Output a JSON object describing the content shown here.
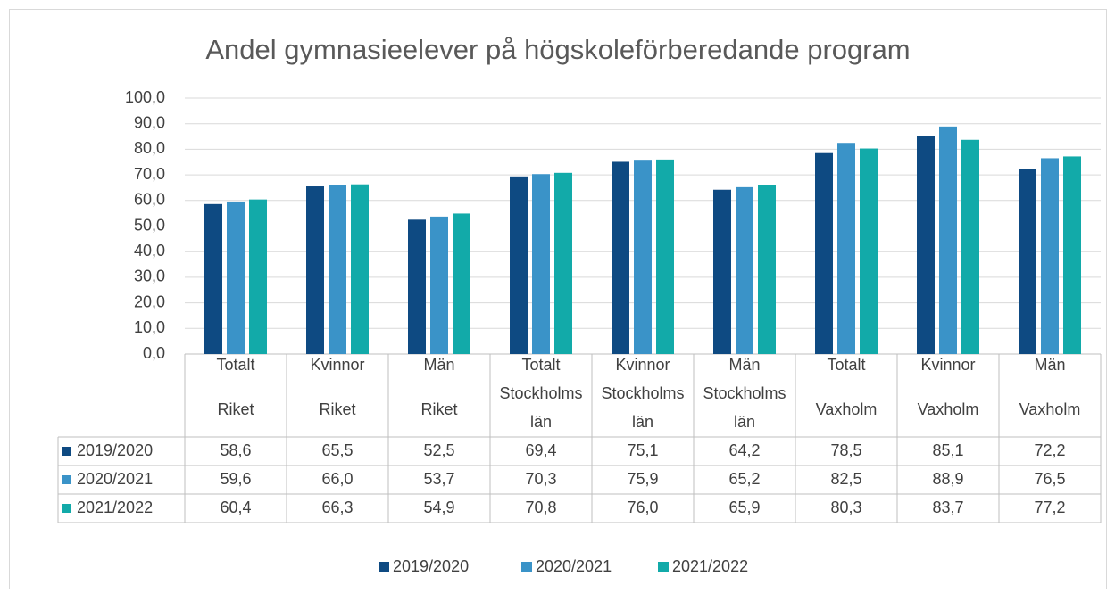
{
  "chart_data": {
    "type": "bar",
    "title": "Andel gymnasieelever på högskoleförberedande program",
    "categories": [
      [
        "Totalt",
        "Riket"
      ],
      [
        "Kvinnor",
        "Riket"
      ],
      [
        "Män",
        "Riket"
      ],
      [
        "Totalt",
        "Stockholms",
        "län"
      ],
      [
        "Kvinnor",
        "Stockholms",
        "län"
      ],
      [
        "Män",
        "Stockholms",
        "län"
      ],
      [
        "Totalt",
        "Vaxholm"
      ],
      [
        "Kvinnor",
        "Vaxholm"
      ],
      [
        "Män",
        "Vaxholm"
      ]
    ],
    "series": [
      {
        "name": "2019/2020",
        "color": "#0e4a82",
        "values": [
          58.6,
          65.5,
          52.5,
          69.4,
          75.1,
          64.2,
          78.5,
          85.1,
          72.2
        ],
        "value_labels": [
          "58,6",
          "65,5",
          "52,5",
          "69,4",
          "75,1",
          "64,2",
          "78,5",
          "85,1",
          "72,2"
        ]
      },
      {
        "name": "2020/2021",
        "color": "#3a93c8",
        "values": [
          59.6,
          66.0,
          53.7,
          70.3,
          75.9,
          65.2,
          82.5,
          88.9,
          76.5
        ],
        "value_labels": [
          "59,6",
          "66,0",
          "53,7",
          "70,3",
          "75,9",
          "65,2",
          "82,5",
          "88,9",
          "76,5"
        ]
      },
      {
        "name": "2021/2022",
        "color": "#12aaa9",
        "values": [
          60.4,
          66.3,
          54.9,
          70.8,
          76.0,
          65.9,
          80.3,
          83.7,
          77.2
        ],
        "value_labels": [
          "60,4",
          "66,3",
          "54,9",
          "70,8",
          "76,0",
          "65,9",
          "80,3",
          "83,7",
          "77,2"
        ]
      }
    ],
    "ylim": [
      0,
      100
    ],
    "yticks": [
      {
        "value": 0,
        "label": "0,0"
      },
      {
        "value": 10,
        "label": "10,0"
      },
      {
        "value": 20,
        "label": "20,0"
      },
      {
        "value": 30,
        "label": "30,0"
      },
      {
        "value": 40,
        "label": "40,0"
      },
      {
        "value": 50,
        "label": "50,0"
      },
      {
        "value": 60,
        "label": "60,0"
      },
      {
        "value": 70,
        "label": "70,0"
      },
      {
        "value": 80,
        "label": "80,0"
      },
      {
        "value": 90,
        "label": "90,0"
      },
      {
        "value": 100,
        "label": "100,0"
      }
    ],
    "grid": true,
    "legend": "bottom"
  }
}
